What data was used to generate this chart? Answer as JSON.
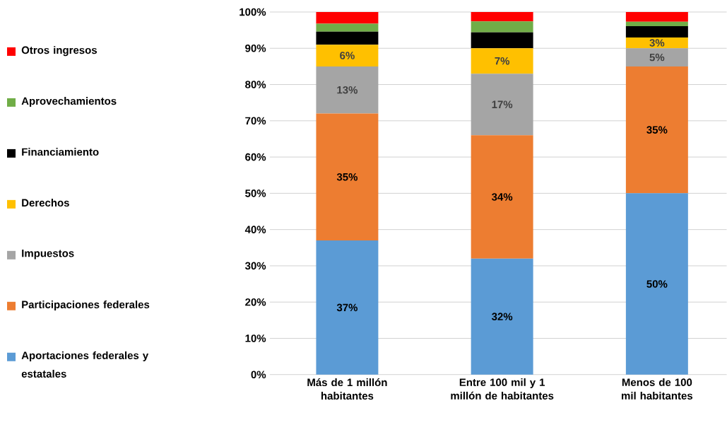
{
  "chart_data": {
    "type": "bar",
    "stacked": true,
    "grid": "y",
    "legend": "left",
    "categories": [
      "Más de 1 millón habitantes",
      "Entre 100 mil y 1 millón de habitantes",
      "Menos de 100 mil habitantes"
    ],
    "ylim": [
      0,
      100
    ],
    "yticks": [
      {
        "value": 0,
        "label": "0%"
      },
      {
        "value": 10,
        "label": "10%"
      },
      {
        "value": 20,
        "label": "20%"
      },
      {
        "value": 30,
        "label": "30%"
      },
      {
        "value": 40,
        "label": "40%"
      },
      {
        "value": 50,
        "label": "50%"
      },
      {
        "value": 60,
        "label": "60%"
      },
      {
        "value": 70,
        "label": "70%"
      },
      {
        "value": 80,
        "label": "80%"
      },
      {
        "value": 90,
        "label": "90%"
      },
      {
        "value": 100,
        "label": "100%"
      }
    ],
    "series": [
      {
        "name": "Aportaciones federales y estatales",
        "color": "#5b9bd5",
        "values": [
          37,
          32,
          50
        ],
        "value_labels": [
          "37%",
          "32%",
          "50%"
        ]
      },
      {
        "name": "Participaciones federales",
        "color": "#ed7d31",
        "values": [
          35,
          34,
          35
        ],
        "value_labels": [
          "35%",
          "34%",
          "35%"
        ]
      },
      {
        "name": "Impuestos",
        "color": "#a5a5a5",
        "values": [
          13,
          17,
          5
        ],
        "value_labels": [
          "13%",
          "17%",
          "5%"
        ]
      },
      {
        "name": "Derechos",
        "color": "#ffc000",
        "values": [
          6,
          7,
          3
        ],
        "value_labels": [
          "6%",
          "7%",
          "3%"
        ]
      },
      {
        "name": "Financiamiento",
        "color": "#000000",
        "values": [
          3.6,
          4.4,
          3.1
        ],
        "value_labels": [
          null,
          null,
          null
        ]
      },
      {
        "name": "Aprovechamientos",
        "color": "#70ad47",
        "values": [
          2.2,
          3.0,
          1.2
        ],
        "value_labels": [
          null,
          null,
          null
        ]
      },
      {
        "name": "Otros ingresos",
        "color": "#ff0000",
        "values": [
          3.2,
          2.6,
          2.7
        ],
        "value_labels": [
          null,
          null,
          null
        ]
      }
    ]
  }
}
